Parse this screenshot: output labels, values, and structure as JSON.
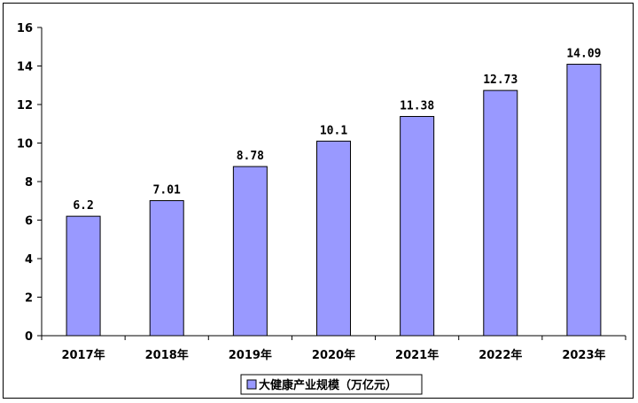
{
  "chart_data": {
    "type": "bar",
    "categories": [
      "2017年",
      "2018年",
      "2019年",
      "2020年",
      "2021年",
      "2022年",
      "2023年"
    ],
    "series": [
      {
        "name": "大健康产业规模（万亿元）",
        "values": [
          6.2,
          7.01,
          8.78,
          10.1,
          11.38,
          12.73,
          14.09
        ]
      }
    ],
    "data_labels": [
      "6.2",
      "7.01",
      "8.78",
      "10.1",
      "11.38",
      "12.73",
      "14.09"
    ],
    "y_ticks": [
      "0",
      "2",
      "4",
      "6",
      "8",
      "10",
      "12",
      "14",
      "16"
    ],
    "ylim": [
      0,
      16
    ],
    "grid": false,
    "legend_position": "bottom",
    "bar_color": "#9999ff",
    "bar_border_color": "#000000",
    "title": "",
    "xlabel": "",
    "ylabel": ""
  }
}
